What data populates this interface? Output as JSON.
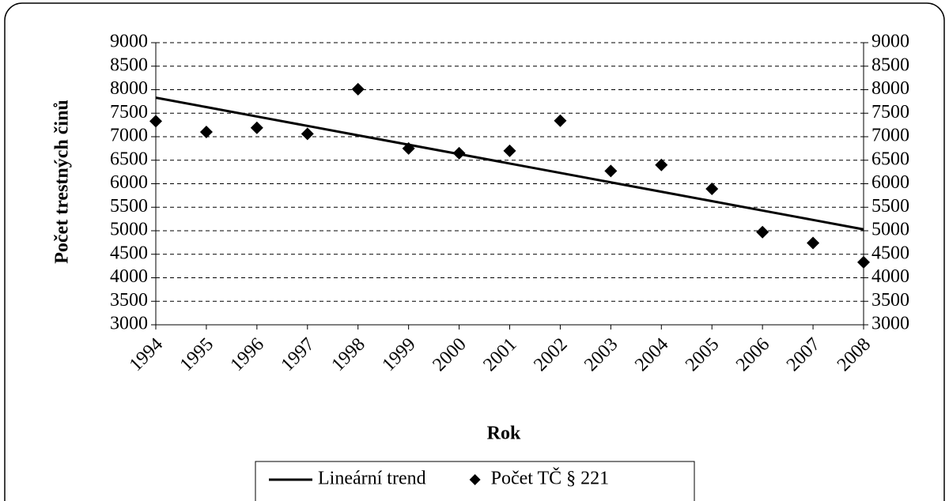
{
  "chart_data": {
    "type": "scatter",
    "x_label": "Rok",
    "y_label": "Počet trestných činů",
    "x": [
      1994,
      1995,
      1996,
      1997,
      1998,
      1999,
      2000,
      2001,
      2002,
      2003,
      2004,
      2005,
      2006,
      2007,
      2008
    ],
    "series": [
      {
        "name": "Lineární trend",
        "type": "line",
        "color": "#000000",
        "values": [
          7830,
          7630,
          7430,
          7230,
          7030,
          6830,
          6630,
          6430,
          6230,
          6030,
          5830,
          5630,
          5430,
          5230,
          5030
        ]
      },
      {
        "name": "Počet TČ § 221",
        "type": "scatter",
        "color": "#000000",
        "values": [
          7330,
          7100,
          7190,
          7060,
          8010,
          6750,
          6650,
          6700,
          7340,
          6270,
          6400,
          5890,
          4970,
          4740,
          4330
        ]
      }
    ],
    "xlim": [
      1994,
      2008
    ],
    "xticks": [
      1994,
      1995,
      1996,
      1997,
      1998,
      1999,
      2000,
      2001,
      2002,
      2003,
      2004,
      2005,
      2006,
      2007,
      2008
    ],
    "ylim": [
      3000,
      9000
    ],
    "yticks": [
      3000,
      3500,
      4000,
      4500,
      5000,
      5500,
      6000,
      6500,
      7000,
      7500,
      8000,
      8500,
      9000
    ],
    "y2lim": [
      3000,
      9000
    ],
    "y2ticks": [
      3000,
      3500,
      4000,
      4500,
      5000,
      5500,
      6000,
      6500,
      7000,
      7500,
      8000,
      8500,
      9000
    ],
    "grid": true,
    "legend": "bottom"
  }
}
